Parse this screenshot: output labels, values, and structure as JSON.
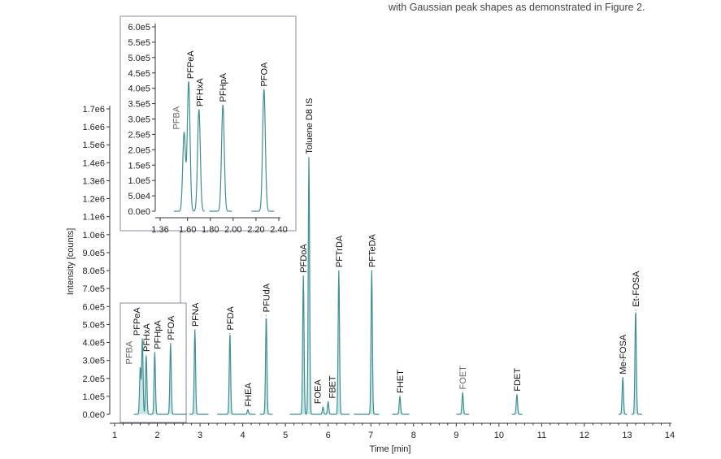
{
  "caption": "with Gaussian peak shapes as demonstrated in Figure 2.",
  "colors": {
    "trace": "#3f8f94",
    "fill": "#a9d8d8",
    "frame": "#8a8aa0",
    "label": "#111111",
    "label_gray": "#666666"
  },
  "chart_data": [
    {
      "type": "line",
      "title": "",
      "xlabel": "Time [min]",
      "ylabel": "Intensity [counts]",
      "xlim": [
        1,
        14
      ],
      "ylim": [
        0,
        1700000
      ],
      "xticks": [
        "1",
        "2",
        "3",
        "4",
        "5",
        "6",
        "7",
        "8",
        "9",
        "10",
        "11",
        "12",
        "13",
        "14"
      ],
      "yticks": [
        "0.0e0",
        "1.0e5",
        "2.0e5",
        "3.0e5",
        "4.0e5",
        "5.0e5",
        "6.0e5",
        "7.0e5",
        "8.0e5",
        "9.0e5",
        "1.0e6",
        "1.1e6",
        "1.2e6",
        "1.3e6",
        "1.4e6",
        "1.5e6",
        "1.6e6",
        "1.7e6"
      ],
      "grid": false,
      "peaks": [
        {
          "label": "PFBA",
          "x": 1.6,
          "y": 260000,
          "gray": true
        },
        {
          "label": "PFPeA",
          "x": 1.65,
          "y": 420000
        },
        {
          "label": "PFHxA",
          "x": 1.74,
          "y": 330000
        },
        {
          "label": "PFHpA",
          "x": 1.94,
          "y": 345000
        },
        {
          "label": "PFOA",
          "x": 2.31,
          "y": 395000
        },
        {
          "label": "PFNA",
          "x": 2.88,
          "y": 470000
        },
        {
          "label": "PFDA",
          "x": 3.7,
          "y": 450000
        },
        {
          "label": "FHEA",
          "x": 4.12,
          "y": 25000
        },
        {
          "label": "PFUdA",
          "x": 4.55,
          "y": 550000
        },
        {
          "label": "PFDoA",
          "x": 5.42,
          "y": 770000
        },
        {
          "label": "Toluene D8 IS",
          "x": 5.55,
          "y": 1430000
        },
        {
          "label": "FOEA",
          "x": 5.88,
          "y": 40000
        },
        {
          "label": "FBET",
          "x": 6.0,
          "y": 70000
        },
        {
          "label": "PFTrDA",
          "x": 6.25,
          "y": 800000
        },
        {
          "label": "PFTeDA",
          "x": 7.02,
          "y": 800000
        },
        {
          "label": "FHET",
          "x": 7.68,
          "y": 100000
        },
        {
          "label": "FOET",
          "x": 9.15,
          "y": 120000,
          "gray": true
        },
        {
          "label": "FDET",
          "x": 10.42,
          "y": 110000
        },
        {
          "label": "Me-FOSA",
          "x": 12.9,
          "y": 205000
        },
        {
          "label": "Et-FOSA",
          "x": 13.2,
          "y": 580000
        }
      ],
      "zoom_region": {
        "x": [
          1.25,
          2.75
        ],
        "y": [
          -20000,
          600000
        ]
      }
    },
    {
      "type": "line",
      "title": "",
      "xlim": [
        1.36,
        2.4
      ],
      "ylim": [
        0,
        600000
      ],
      "xticks": [
        "1.36",
        "1.60",
        "1.80",
        "2.00",
        "2.20",
        "2.40"
      ],
      "yticks": [
        "0.0e0",
        "5.0e4",
        "1.0e5",
        "1.5e5",
        "2.0e5",
        "2.5e5",
        "3.0e5",
        "3.5e5",
        "4.0e5",
        "4.5e5",
        "5.0e5",
        "5.5e5",
        "6.0e5"
      ],
      "grid": false,
      "peaks": [
        {
          "label": "PFBA",
          "x": 1.57,
          "y": 255000,
          "gray": true
        },
        {
          "label": "PFPeA",
          "x": 1.61,
          "y": 420000
        },
        {
          "label": "PFHxA",
          "x": 1.7,
          "y": 330000
        },
        {
          "label": "PFHpA",
          "x": 1.91,
          "y": 345000
        },
        {
          "label": "PFOA",
          "x": 2.27,
          "y": 395000
        }
      ]
    }
  ]
}
